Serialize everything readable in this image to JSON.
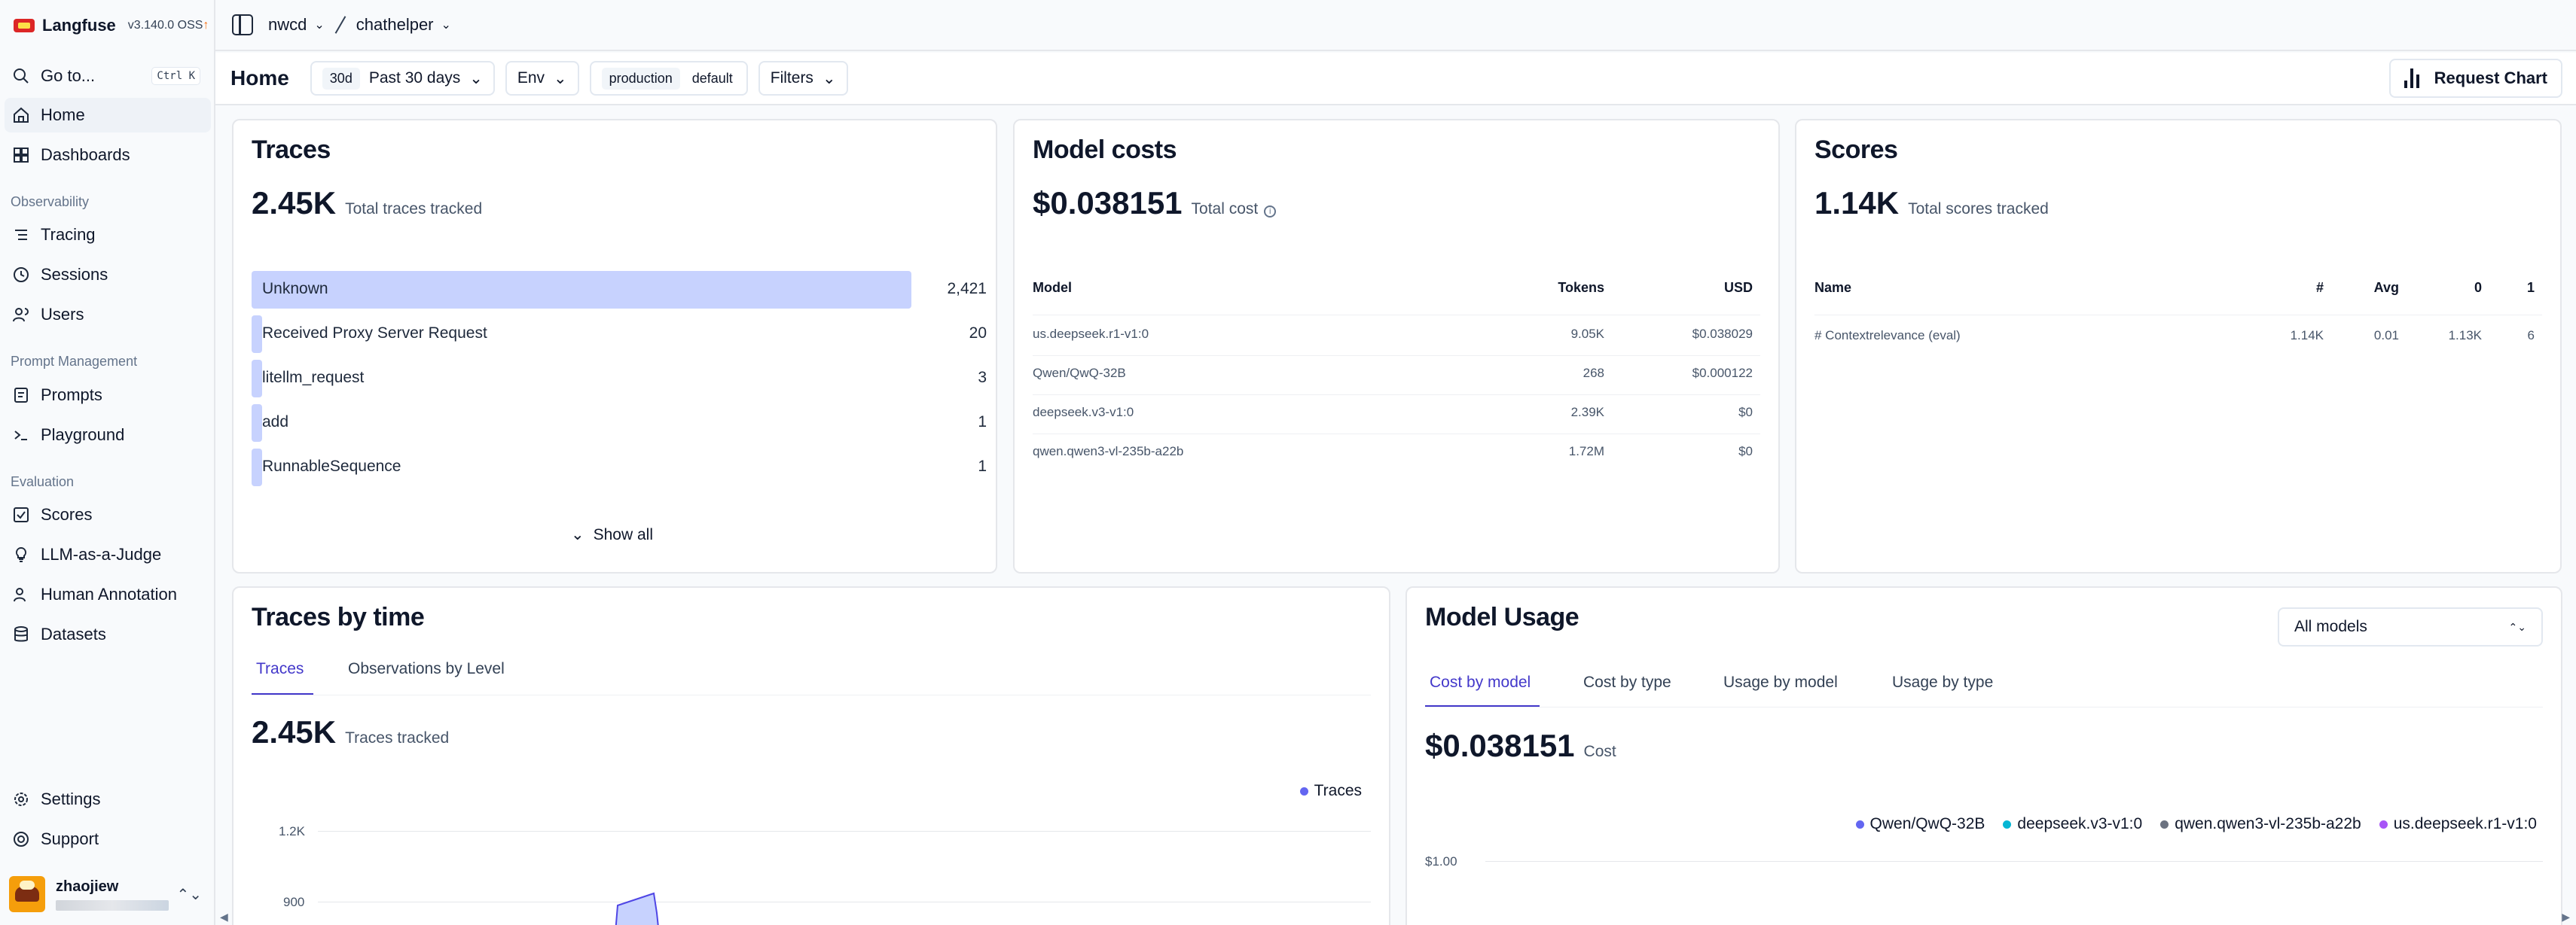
{
  "app": {
    "name": "Langfuse",
    "version": "v3.140.0 OSS"
  },
  "breadcrumb": {
    "org": "nwcd",
    "project": "chathelper"
  },
  "sidebar": {
    "goto": {
      "label": "Go to...",
      "shortcut": "Ctrl K"
    },
    "items": {
      "home": "Home",
      "dashboards": "Dashboards",
      "tracing": "Tracing",
      "sessions": "Sessions",
      "users": "Users",
      "prompts": "Prompts",
      "playground": "Playground",
      "scores": "Scores",
      "llm_judge": "LLM-as-a-Judge",
      "human_annotation": "Human Annotation",
      "datasets": "Datasets",
      "settings": "Settings",
      "support": "Support"
    },
    "sections": {
      "observability": "Observability",
      "prompt_management": "Prompt Management",
      "evaluation": "Evaluation"
    },
    "user": {
      "name": "zhaojiew"
    }
  },
  "filterbar": {
    "title": "Home",
    "date_badge": "30d",
    "date_label": "Past 30 days",
    "env_label": "Env",
    "env_values": [
      "production",
      "default"
    ],
    "filters_label": "Filters",
    "request_chart": "Request Chart"
  },
  "traces_card": {
    "title": "Traces",
    "total": "2.45K",
    "total_label": "Total traces tracked",
    "rows": [
      {
        "label": "Unknown",
        "value": "2,421",
        "fraction": 1.0
      },
      {
        "label": "Received Proxy Server Request",
        "value": "20",
        "fraction": 0.0083
      },
      {
        "label": "litellm_request",
        "value": "3",
        "fraction": 0.0012
      },
      {
        "label": "add",
        "value": "1",
        "fraction": 0.0004
      },
      {
        "label": "RunnableSequence",
        "value": "1",
        "fraction": 0.0004
      }
    ],
    "show_all": "Show all"
  },
  "model_costs": {
    "title": "Model costs",
    "total": "$0.038151",
    "total_label": "Total cost",
    "headers": {
      "model": "Model",
      "tokens": "Tokens",
      "usd": "USD"
    },
    "rows": [
      {
        "model": "us.deepseek.r1-v1:0",
        "tokens": "9.05K",
        "usd": "$0.038029"
      },
      {
        "model": "Qwen/QwQ-32B",
        "tokens": "268",
        "usd": "$0.000122"
      },
      {
        "model": "deepseek.v3-v1:0",
        "tokens": "2.39K",
        "usd": "$0"
      },
      {
        "model": "qwen.qwen3-vl-235b-a22b",
        "tokens": "1.72M",
        "usd": "$0"
      }
    ]
  },
  "scores_card": {
    "title": "Scores",
    "total": "1.14K",
    "total_label": "Total scores tracked",
    "headers": {
      "name": "Name",
      "count": "#",
      "avg": "Avg",
      "zero": "0",
      "one": "1"
    },
    "rows": [
      {
        "name": "# Contextrelevance (eval)",
        "count": "1.14K",
        "avg": "0.01",
        "zero": "1.13K",
        "one": "6"
      }
    ]
  },
  "traces_by_time": {
    "title": "Traces by time",
    "tabs": [
      "Traces",
      "Observations by Level"
    ],
    "total": "2.45K",
    "total_label": "Traces tracked",
    "legend": "Traces",
    "y_ticks": [
      "1.2K",
      "900"
    ]
  },
  "model_usage": {
    "title": "Model Usage",
    "select": "All models",
    "tabs": [
      "Cost by model",
      "Cost by type",
      "Usage by model",
      "Usage by type"
    ],
    "total": "$0.038151",
    "total_label": "Cost",
    "legend": [
      {
        "name": "Qwen/QwQ-32B",
        "color": "#6366f1"
      },
      {
        "name": "deepseek.v3-v1:0",
        "color": "#06b6d4"
      },
      {
        "name": "qwen.qwen3-vl-235b-a22b",
        "color": "#6b7280"
      },
      {
        "name": "us.deepseek.r1-v1:0",
        "color": "#a855f7"
      }
    ],
    "y_tick": "$1.00"
  },
  "colors": {
    "accent": "#4338ca",
    "bar": "#c7d2fe",
    "series": "#6366f1"
  }
}
